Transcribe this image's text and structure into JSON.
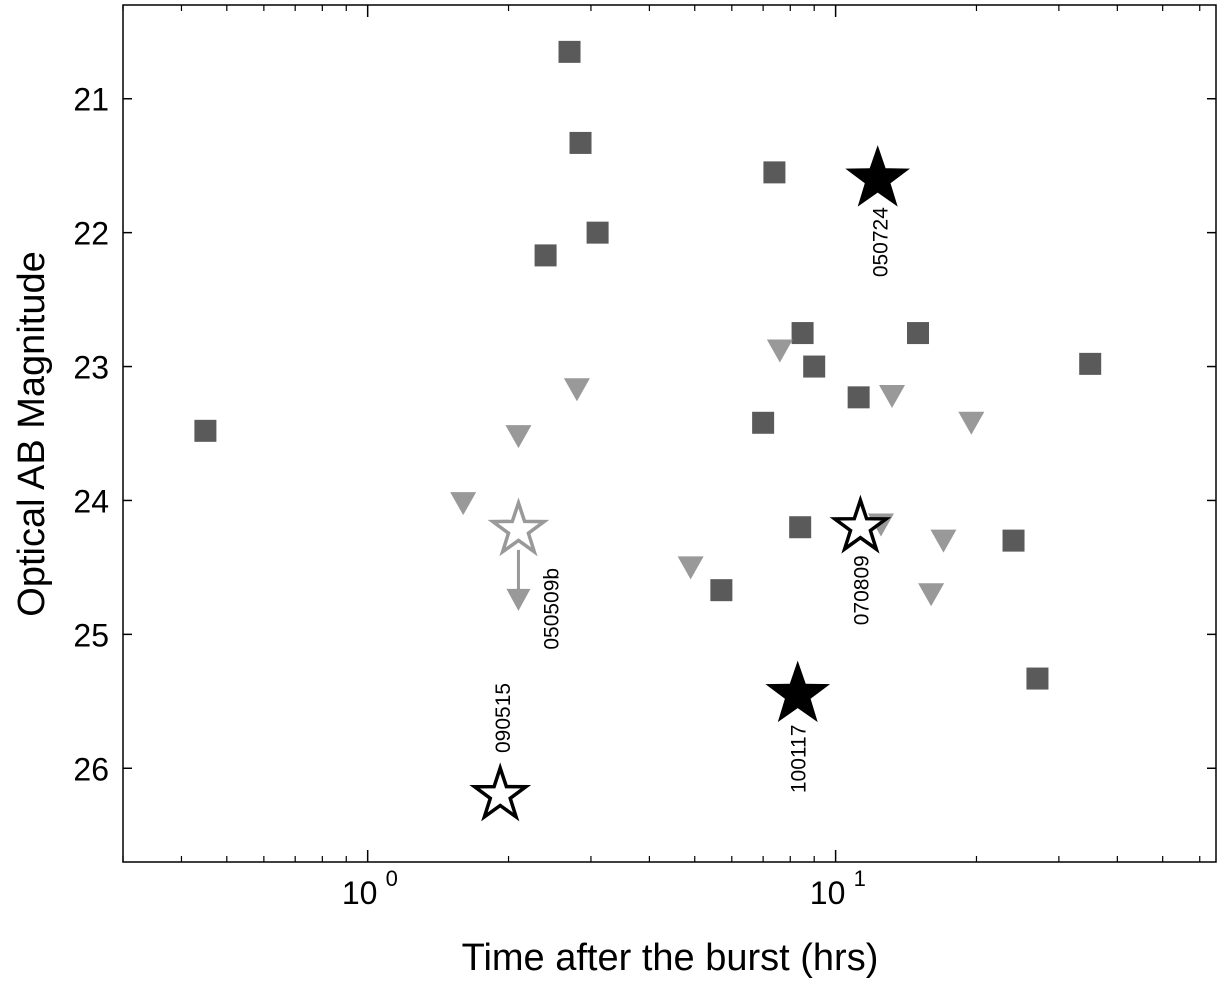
{
  "chart_data": {
    "type": "scatter",
    "title": "",
    "xlabel": "Time after the burst  (hrs)",
    "ylabel": "Optical AB Magnitude",
    "xscale": "log",
    "xlim": [
      0.3,
      65
    ],
    "ylim": [
      20.3,
      26.7
    ],
    "y_inverted": true,
    "grid": false,
    "legend": "none",
    "x_major_ticks": [
      {
        "value": 1,
        "base": "10",
        "exp": "0"
      },
      {
        "value": 10,
        "base": "10",
        "exp": "1"
      }
    ],
    "y_ticks": [
      21,
      22,
      23,
      24,
      25,
      26
    ],
    "series": [
      {
        "marker": "square",
        "color": "#5a5a5a",
        "points": [
          {
            "x": 0.45,
            "y": 23.48
          },
          {
            "x": 2.4,
            "y": 22.17
          },
          {
            "x": 2.7,
            "y": 20.65
          },
          {
            "x": 2.85,
            "y": 21.33
          },
          {
            "x": 3.1,
            "y": 22.0
          },
          {
            "x": 5.7,
            "y": 24.67
          },
          {
            "x": 7.0,
            "y": 23.42
          },
          {
            "x": 7.4,
            "y": 21.55
          },
          {
            "x": 8.4,
            "y": 24.2
          },
          {
            "x": 8.5,
            "y": 22.75
          },
          {
            "x": 9.0,
            "y": 23.0
          },
          {
            "x": 11.2,
            "y": 23.23
          },
          {
            "x": 15.0,
            "y": 22.75
          },
          {
            "x": 24.0,
            "y": 24.3
          },
          {
            "x": 27.0,
            "y": 25.33
          },
          {
            "x": 35.0,
            "y": 22.98
          }
        ]
      },
      {
        "marker": "triangle-down",
        "color": "#999999",
        "points": [
          {
            "x": 1.6,
            "y": 24.02
          },
          {
            "x": 2.1,
            "y": 23.52
          },
          {
            "x": 2.8,
            "y": 23.17
          },
          {
            "x": 4.9,
            "y": 24.5
          },
          {
            "x": 7.6,
            "y": 22.88
          },
          {
            "x": 12.5,
            "y": 24.18
          },
          {
            "x": 13.2,
            "y": 23.22
          },
          {
            "x": 16.0,
            "y": 24.7
          },
          {
            "x": 17.0,
            "y": 24.3
          },
          {
            "x": 19.5,
            "y": 23.42
          }
        ]
      },
      {
        "marker": "star-filled",
        "color": "#000000",
        "points": [
          {
            "x": 12.3,
            "y": 21.6,
            "label": "050724"
          },
          {
            "x": 8.3,
            "y": 25.45,
            "label": "100117"
          }
        ]
      },
      {
        "marker": "star-open",
        "color": "#000000",
        "points": [
          {
            "x": 11.3,
            "y": 24.2,
            "label": "070809"
          },
          {
            "x": 1.92,
            "y": 26.2,
            "label": "090515"
          }
        ]
      },
      {
        "marker": "star-open",
        "color": "#999999",
        "points": [
          {
            "x": 2.1,
            "y": 24.22,
            "label": "050509b",
            "arrow_to_y": 24.75
          }
        ]
      }
    ]
  }
}
